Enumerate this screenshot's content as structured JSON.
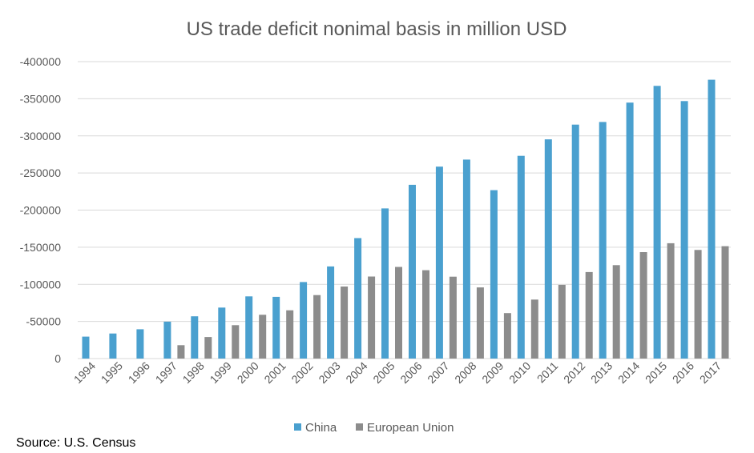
{
  "chart_data": {
    "type": "bar",
    "title": "US trade deficit nonimal basis in million USD",
    "xlabel": "",
    "ylabel": "",
    "ylim": [
      0,
      -400000
    ],
    "yticks": [
      "-400000",
      "-350000",
      "-300000",
      "-250000",
      "-200000",
      "-150000",
      "-100000",
      "-50000",
      "0"
    ],
    "ytick_values": [
      -400000,
      -350000,
      -300000,
      -250000,
      -200000,
      -150000,
      -100000,
      -50000,
      0
    ],
    "grid": true,
    "legend_position": "bottom",
    "categories": [
      "1994",
      "1995",
      "1996",
      "1997",
      "1998",
      "1999",
      "2000",
      "2001",
      "2002",
      "2003",
      "2004",
      "2005",
      "2006",
      "2007",
      "2008",
      "2009",
      "2010",
      "2011",
      "2012",
      "2013",
      "2014",
      "2015",
      "2016",
      "2017"
    ],
    "series": [
      {
        "name": "China",
        "color": "#4aa0cf",
        "values": [
          -29500,
          -33800,
          -39500,
          -49700,
          -56900,
          -68700,
          -83800,
          -83100,
          -103100,
          -124100,
          -162300,
          -202300,
          -234100,
          -258500,
          -268000,
          -226900,
          -273100,
          -295300,
          -315100,
          -318700,
          -344800,
          -367300,
          -346800,
          -375600
        ]
      },
      {
        "name": "European Union",
        "color": "#8c8c8c",
        "values": [
          0,
          0,
          0,
          -18000,
          -29000,
          -45000,
          -59000,
          -65000,
          -85500,
          -97000,
          -110500,
          -123500,
          -119000,
          -110300,
          -95800,
          -61200,
          -79500,
          -99300,
          -116500,
          -125800,
          -143400,
          -155400,
          -146300,
          -151400
        ]
      }
    ]
  },
  "source_note": "Source: U.S. Census"
}
